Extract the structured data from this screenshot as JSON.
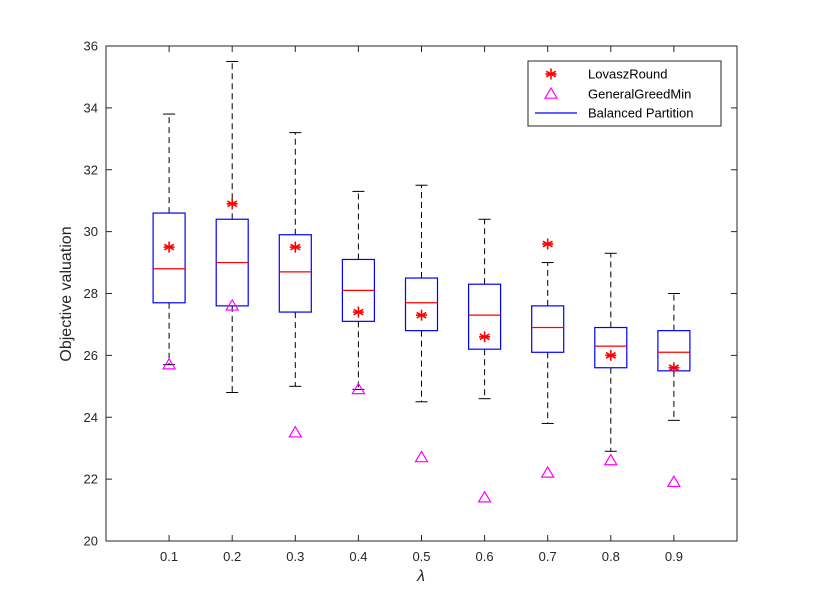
{
  "chart_data": {
    "type": "box",
    "xlabel": "λ",
    "ylabel": "Objective valuation",
    "ylim": [
      20,
      36
    ],
    "yticks": [
      20,
      22,
      24,
      26,
      28,
      30,
      32,
      34,
      36
    ],
    "grid": false,
    "legend_position": "top-right",
    "categories": [
      "0.1",
      "0.2",
      "0.3",
      "0.4",
      "0.5",
      "0.6",
      "0.7",
      "0.8",
      "0.9"
    ],
    "series": [
      {
        "name": "Balanced Partition",
        "kind": "box",
        "color": "#0000ff",
        "median_color": "#ff0000",
        "whisker_color": "#000000",
        "boxes": [
          {
            "whisker_low": 25.7,
            "q1": 27.7,
            "median": 28.8,
            "q3": 30.6,
            "whisker_high": 33.8
          },
          {
            "whisker_low": 24.8,
            "q1": 27.6,
            "median": 29.0,
            "q3": 30.4,
            "whisker_high": 35.5
          },
          {
            "whisker_low": 25.0,
            "q1": 27.4,
            "median": 28.7,
            "q3": 29.9,
            "whisker_high": 33.2
          },
          {
            "whisker_low": 24.9,
            "q1": 27.1,
            "median": 28.1,
            "q3": 29.1,
            "whisker_high": 31.3
          },
          {
            "whisker_low": 24.5,
            "q1": 26.8,
            "median": 27.7,
            "q3": 28.5,
            "whisker_high": 31.5
          },
          {
            "whisker_low": 24.6,
            "q1": 26.2,
            "median": 27.3,
            "q3": 28.3,
            "whisker_high": 30.4
          },
          {
            "whisker_low": 23.8,
            "q1": 26.1,
            "median": 26.9,
            "q3": 27.6,
            "whisker_high": 29.0
          },
          {
            "whisker_low": 22.9,
            "q1": 25.6,
            "median": 26.3,
            "q3": 26.9,
            "whisker_high": 29.3
          },
          {
            "whisker_low": 23.9,
            "q1": 25.5,
            "median": 26.1,
            "q3": 26.8,
            "whisker_high": 28.0
          }
        ]
      },
      {
        "name": "LovaszRound",
        "kind": "marker",
        "marker": "asterisk",
        "color": "#ff0000",
        "values": [
          29.5,
          30.9,
          29.5,
          27.4,
          27.3,
          26.6,
          29.6,
          26.0,
          25.6
        ]
      },
      {
        "name": "GeneralGreedMin",
        "kind": "marker",
        "marker": "triangle",
        "color": "#ff00ff",
        "values": [
          25.7,
          27.6,
          23.5,
          24.9,
          22.7,
          21.4,
          22.2,
          22.6,
          21.9
        ]
      }
    ]
  }
}
